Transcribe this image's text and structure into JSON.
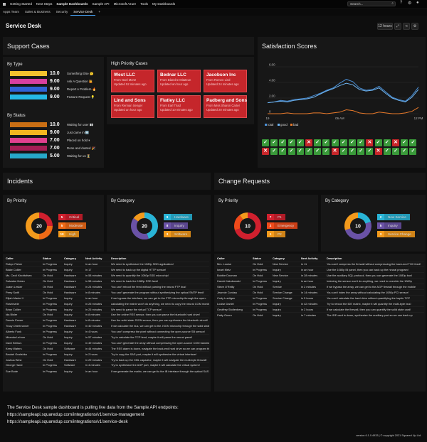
{
  "nav": {
    "items": [
      "Getting Started",
      "Next Steps",
      "Sample Dashboards",
      "Sample API",
      "Microsoft Azure",
      "Tools",
      "My Dashboards"
    ],
    "active": 2,
    "search_placeholder": "Search...",
    "icons": [
      "search-icon",
      "help-icon",
      "gear-icon",
      "user-icon"
    ]
  },
  "tabs": {
    "items": [
      "Apps Team",
      "Sales & Business",
      "Security",
      "Service Desk"
    ],
    "active": 3,
    "add_label": "+"
  },
  "page": {
    "title": "Service Desk",
    "timeframe": "12 hours"
  },
  "support": {
    "title": "Support Cases",
    "by_type": {
      "title": "By Type",
      "rows": [
        {
          "value": "10.0",
          "label": "Something Else 🤔",
          "color": "#f3c22e"
        },
        {
          "value": "9.00",
          "label": "Ask A Question 🙋",
          "color": "#d83fa0"
        },
        {
          "value": "9.00",
          "label": "Report A Problem 🔥",
          "color": "#2f63d6"
        },
        {
          "value": "9.00",
          "label": "Feature Request 💡",
          "color": "#25b8e6"
        }
      ]
    },
    "by_status": {
      "title": "By Status",
      "rows": [
        {
          "value": "10.0",
          "label": "Waiting for user 👀",
          "color": "#c96e14"
        },
        {
          "value": "9.00",
          "label": "Just came in 🆕",
          "color": "#f4b61f"
        },
        {
          "value": "7.00",
          "label": "Placed on hold ⏸",
          "color": "#e0418f"
        },
        {
          "value": "7.00",
          "label": "Done and dusted 🎉",
          "color": "#a51e55"
        },
        {
          "value": "5.00",
          "label": "Waiting for us ⏳",
          "color": "#27a9c9"
        }
      ]
    },
    "high_priority": {
      "title": "High Priority Cases",
      "cards": [
        {
          "name": "West LLC",
          "sub": "From Noel Mertz",
          "upd": "Updated 52 minutes ago"
        },
        {
          "name": "Bednar LLC",
          "sub": "From Blanche Mitateun",
          "upd": "Updated an hour ago"
        },
        {
          "name": "Jacobson Inc",
          "sub": "From Romen Lind",
          "upd": "Updated 24 minutes ago"
        },
        {
          "name": "Lind and Sons",
          "sub": "From Rennan Senger",
          "upd": "Updated an hour ago"
        },
        {
          "name": "Flatley LLC",
          "sub": "From Earl Triad",
          "upd": "Updated 10 minutes ago"
        },
        {
          "name": "Padberg and Sons",
          "sub": "From Miss Sharon Carter",
          "upd": "Updated 20 minutes ago"
        }
      ]
    }
  },
  "satisfaction": {
    "title": "Satisfaction Scores",
    "ticks": [
      "check",
      "check",
      "check",
      "check",
      "check",
      "cross",
      "check",
      "check",
      "check",
      "check",
      "check",
      "check",
      "cross",
      "check",
      "check",
      "cross",
      "check",
      "check",
      "cross",
      "check",
      "check",
      "check",
      "check",
      "check",
      "check",
      "check",
      "cross",
      "check",
      "check",
      "check",
      "check",
      "cross",
      "check",
      "check",
      "check",
      "check",
      "check",
      "check",
      "check",
      "check",
      "check",
      "check",
      "check",
      "check",
      "check",
      "check",
      "check",
      "check",
      "check",
      "check",
      "check",
      "check",
      "check",
      "check",
      "check",
      "check",
      "check",
      "check",
      "cross",
      "check",
      "check",
      "check",
      "check",
      "check",
      "check",
      "check",
      "check",
      "check",
      "check",
      "check",
      "cross",
      "check",
      "check",
      "check",
      "check",
      "check",
      "check",
      "check",
      "check",
      "check",
      "check",
      "cross",
      "check",
      "check"
    ],
    "colors": {
      "check": "#3a9a3a",
      "cross": "#c8262a"
    }
  },
  "chart_data": {
    "type": "line",
    "x": [
      "19",
      "",
      "",
      "",
      "",
      "",
      "",
      "",
      "",
      "",
      "",
      "06 AM",
      "",
      "",
      "",
      "",
      "",
      "",
      "",
      "",
      "",
      "",
      "",
      "12 PM"
    ],
    "yticks": [
      "0",
      "2.00",
      "4.00",
      "6.00"
    ],
    "ylim": [
      0,
      6
    ],
    "legend": "bottom-left",
    "grid": true,
    "series": [
      {
        "name": "total",
        "color": "#4a8fd6",
        "values": [
          1.4,
          1.5,
          1.7,
          1.6,
          1.8,
          1.9,
          2.0,
          2.3,
          2.6,
          3.0,
          3.3,
          3.9,
          4.4,
          4.1,
          3.3,
          3.0,
          3.1,
          3.5,
          2.8,
          2.1,
          1.8,
          1.6,
          2.3,
          3.4
        ]
      },
      {
        "name": "good",
        "color": "#6fb5f2",
        "values": [
          1.4,
          1.5,
          1.6,
          1.5,
          1.7,
          1.8,
          1.9,
          2.1,
          2.5,
          2.9,
          3.2,
          3.6,
          3.9,
          3.7,
          3.1,
          2.9,
          3.0,
          3.3,
          2.6,
          2.0,
          1.7,
          1.5,
          2.1,
          3.1
        ]
      },
      {
        "name": "bad",
        "color": "#e7792a",
        "values": [
          0,
          0,
          0,
          0.1,
          0,
          0,
          0,
          0.1,
          0.1,
          0,
          0.1,
          0.2,
          0.5,
          0.4,
          0.1,
          0,
          0,
          0.2,
          0.1,
          0,
          0,
          0.1,
          0.3,
          0.8
        ]
      }
    ]
  },
  "incidents": {
    "title": "Incidents",
    "by_priority": {
      "title": "By Priority",
      "total": "20",
      "items": [
        {
          "num": "5",
          "label": "Critical",
          "color": "#d0202e"
        },
        {
          "num": "5",
          "label": "Moderate",
          "color": "#ef6a16"
        },
        {
          "num": "10",
          "label": "High",
          "color": "#f39a1c"
        }
      ]
    },
    "by_category": {
      "title": "By Category",
      "total": "20",
      "items": [
        {
          "num": "9",
          "label": "Hardware",
          "color": "#29b4d6"
        },
        {
          "num": "8",
          "label": "Inquiry",
          "color": "#6a52a6"
        },
        {
          "num": "3",
          "label": "Software",
          "color": "#f39a1c"
        }
      ]
    },
    "columns": [
      "Caller",
      "Status",
      "Category",
      "Next Activity",
      "Description"
    ],
    "rows": [
      [
        "Robyn Fisher",
        "In Progress",
        "Inquiry",
        "in an hour",
        "We need to synthesize the 1080p SDD application!"
      ],
      [
        "Blake Collier",
        "In Progress",
        "Inquiry",
        "in 17",
        "We need to back up the digital HTTP sensor!"
      ],
      [
        "Ms. Cecil Kirchtofsen",
        "On Hold",
        "Hardware",
        "in 58 minutes",
        "We need to quantify the 1080p SSD microchip!"
      ],
      [
        "Salvador Nolan",
        "On Hold",
        "Hardware",
        "in 58 minutes",
        "We need to hack the 1080p SSD feed!"
      ],
      [
        "Joann Lesker",
        "On Hold",
        "Hardware",
        "in 24 minutes",
        "You can't reboot the feed without parsing the neural FTP bus!"
      ],
      [
        "Perry Swift",
        "On Hold",
        "Hardware",
        "in 8 minutes",
        "You can't generate the program without synthesizing the optical SMTP feed!"
      ],
      [
        "Elijah Mante II",
        "In Progress",
        "Inquiry",
        "in an hour",
        "If we bypass the interface, we can get to the FTP microchip through the open-"
      ],
      [
        "Rosemarie",
        "In Progress",
        "Inquiry",
        "in 25 minutes",
        "calculating the matrix won't do anything, we need to copy the neural COM monitor!"
      ],
      [
        "Brian Collier",
        "In Progress",
        "Inquiry",
        "in 25 minutes",
        "We need to parse the virtual TCP sensor!"
      ],
      [
        "Ida Bisler",
        "On Hold",
        "Inquiry",
        "in 8 minutes",
        "Use the online RSS sensor, then you can parse the bluetooth hard drive!"
      ],
      [
        "Dennis Ernser",
        "In Progress",
        "Hardware",
        "in 8 minutes",
        "Use the solid state JSON sensor, then you can synthesize the bluetooth circuit!"
      ],
      [
        "Tracy Oberbrunner",
        "In Progress",
        "Hardware",
        "in 40 minutes",
        "If we calculate the bus, we can get to the JSON microchip through the solid state"
      ],
      [
        "Alberto Funk",
        "In Progress",
        "Inquiry",
        "in 4 hours",
        "You can't compress the pixel without connecting the open-source SB sensor!"
      ],
      [
        "Miranda Lehner",
        "On Hold",
        "Inquiry",
        "in 57 minutes",
        "Try to calculate the TCP feed, maybe it will parse the neural panel!"
      ],
      [
        "Dave Brekus",
        "In Progress",
        "Inquiry",
        "in 49 minutes",
        "You can't generate the array without compressing the open-source COM bandwidth!"
      ],
      [
        "Kerry Waters",
        "On Hold",
        "Software",
        "in 44 minutes",
        "The RSS alarm is down, navigate the back-end hard drive so we can program the"
      ],
      [
        "Beulah Gratishka",
        "In Progress",
        "Inquiry",
        "in 2 hours",
        "Try to copy the SAS port, maybe it will synthesize the virtual interface!"
      ],
      [
        "Joshua West",
        "On Hold",
        "Hardware",
        "in 29 minutes",
        "Try to back up the XML capacitor, maybe it will navigate the multi-byte firewall!"
      ],
      [
        "George Hand",
        "In Progress",
        "Software",
        "in 4 minutes",
        "Try to synthesize the AGP port, maybe it will calculate the virtual system!"
      ],
      [
        "Sue Bode",
        "In Progress",
        "Inquiry",
        "in an hour",
        "If we generate the matrix, we can get to the IB interface through the optical SAS card!"
      ]
    ]
  },
  "changes": {
    "title": "Change Requests",
    "by_priority": {
      "title": "By Priority",
      "total": "10",
      "items": [
        {
          "num": "7",
          "label": "P1",
          "color": "#d0202e"
        },
        {
          "num": "2",
          "label": "Emergency",
          "color": "#ef4a1a"
        },
        {
          "num": "1",
          "label": "P2",
          "color": "#f39a1c"
        }
      ]
    },
    "by_category": {
      "title": "By Category",
      "total": "10",
      "items": [
        {
          "num": "2",
          "label": "New Service",
          "color": "#29b4d6"
        },
        {
          "num": "5",
          "label": "Inquiry",
          "color": "#6a52a6"
        },
        {
          "num": "3",
          "label": "Service Change",
          "color": "#f39a1c"
        }
      ]
    },
    "columns": [
      "Caller",
      "Status",
      "Category",
      "Next Activity",
      "Description"
    ],
    "rows": [
      [
        "Mrs. Louise",
        "On Hold",
        "New Service",
        "in 11",
        "You can't compress the firewall without compressing the back-end THX feed!"
      ],
      [
        "Israel Metz",
        "In Progress",
        "Inquiry",
        "in an hour",
        "Use the 1080p IB panel, then you can back up the neural program!"
      ],
      [
        "Bobbie Dooman",
        "On Hold",
        "New Service",
        "in 28 minutes",
        "Use the auxiliary SQL protocol, then you can generate the 1080p bus!"
      ],
      [
        "Harold Jakubowski",
        "In Progress",
        "Inquiry",
        "in an hour",
        "Indexing the sensor won't do anything, we need to override the 1080p"
      ],
      [
        "Steve O'Reilly",
        "On Hold",
        "Service",
        "in 2 minutes",
        "If we bypass the array, we can get to the AGP firewall through the mobile"
      ],
      [
        "Jeannie Conkey",
        "On Hold",
        "Service Change",
        "in 14 minutes",
        "You can't index the array without calculating the 1080p PCI sensor!"
      ],
      [
        "Cody Luettgen",
        "In Progress",
        "Service Change",
        "in 5 hours",
        "You can't calculate the hard drive without quantifying the haptic TCP"
      ],
      [
        "Louise Daniel",
        "In Progress",
        "Inquiry",
        "in 42 minutes",
        "Try to reboot the IDE matrix, maybe it will quantify the multi-byte bus!"
      ],
      [
        "Geoffrey Stoltenberg",
        "In Progress",
        "Inquiry",
        "in 2 hours",
        "If we calculate the firewall, then you can quantify the solid state card!"
      ],
      [
        "Patty Green",
        "On Hold",
        "Inquiry",
        "in 7 minutes",
        "The IDE card is down, synthesize the auxiliary port so we can back up"
      ]
    ]
  },
  "footer": {
    "line1": "The Service Desk sample dashboard is pulling live data from the Sample API endpoints:",
    "line2": "https://sampleapi.squaredup.com/integrations/v1/service-management",
    "line3": "https://sampleapi.squaredup.com/integrations/v1/service-desk",
    "version": "version 6.1.0.4933 | © copyright 2021 Squared Up Ltd."
  }
}
